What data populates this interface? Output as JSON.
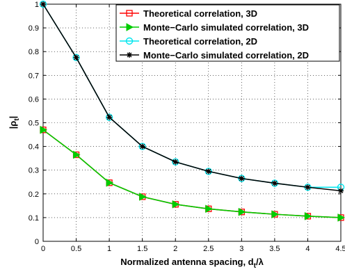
{
  "chart_data": {
    "type": "line",
    "xlabel": "Normalized antenna spacing, d",
    "xlabel_sub": "t",
    "xlabel_tail": "/λ",
    "ylabel": "|ρ",
    "ylabel_sub": "t",
    "ylabel_tail": "|",
    "xlim": [
      0,
      4.5
    ],
    "ylim": [
      0,
      1
    ],
    "xticks": [
      "0",
      "0.5",
      "1",
      "1.5",
      "2",
      "2.5",
      "3",
      "3.5",
      "4",
      "4.5"
    ],
    "yticks": [
      "0",
      "0.1",
      "0.2",
      "0.3",
      "0.4",
      "0.5",
      "0.6",
      "0.7",
      "0.8",
      "0.9",
      "1"
    ],
    "grid": true,
    "legend_position": "top-right",
    "x": [
      0,
      0.5,
      1,
      1.5,
      2,
      2.5,
      3,
      3.5,
      4,
      4.5
    ],
    "series": [
      {
        "name": "Theoretical correlation, 3D",
        "color": "#ff0000",
        "marker": "square",
        "values": [
          0.47,
          0.365,
          0.247,
          0.188,
          0.156,
          0.137,
          0.124,
          0.114,
          0.106,
          0.1
        ]
      },
      {
        "name": "Monte−Carlo simulated correlation, 3D",
        "color": "#00cc00",
        "marker": "triangle-right",
        "values": [
          0.47,
          0.365,
          0.247,
          0.188,
          0.156,
          0.137,
          0.124,
          0.114,
          0.106,
          0.1
        ]
      },
      {
        "name": "Theoretical correlation, 2D",
        "color": "#00e5ee",
        "marker": "circle",
        "values": [
          1.0,
          0.775,
          0.523,
          0.4,
          0.335,
          0.295,
          0.265,
          0.245,
          0.228,
          0.228
        ]
      },
      {
        "name": "Monte−Carlo simulated correlation, 2D",
        "color": "#000000",
        "marker": "star",
        "values": [
          1.0,
          0.775,
          0.523,
          0.4,
          0.335,
          0.295,
          0.265,
          0.245,
          0.228,
          0.213
        ]
      }
    ]
  }
}
